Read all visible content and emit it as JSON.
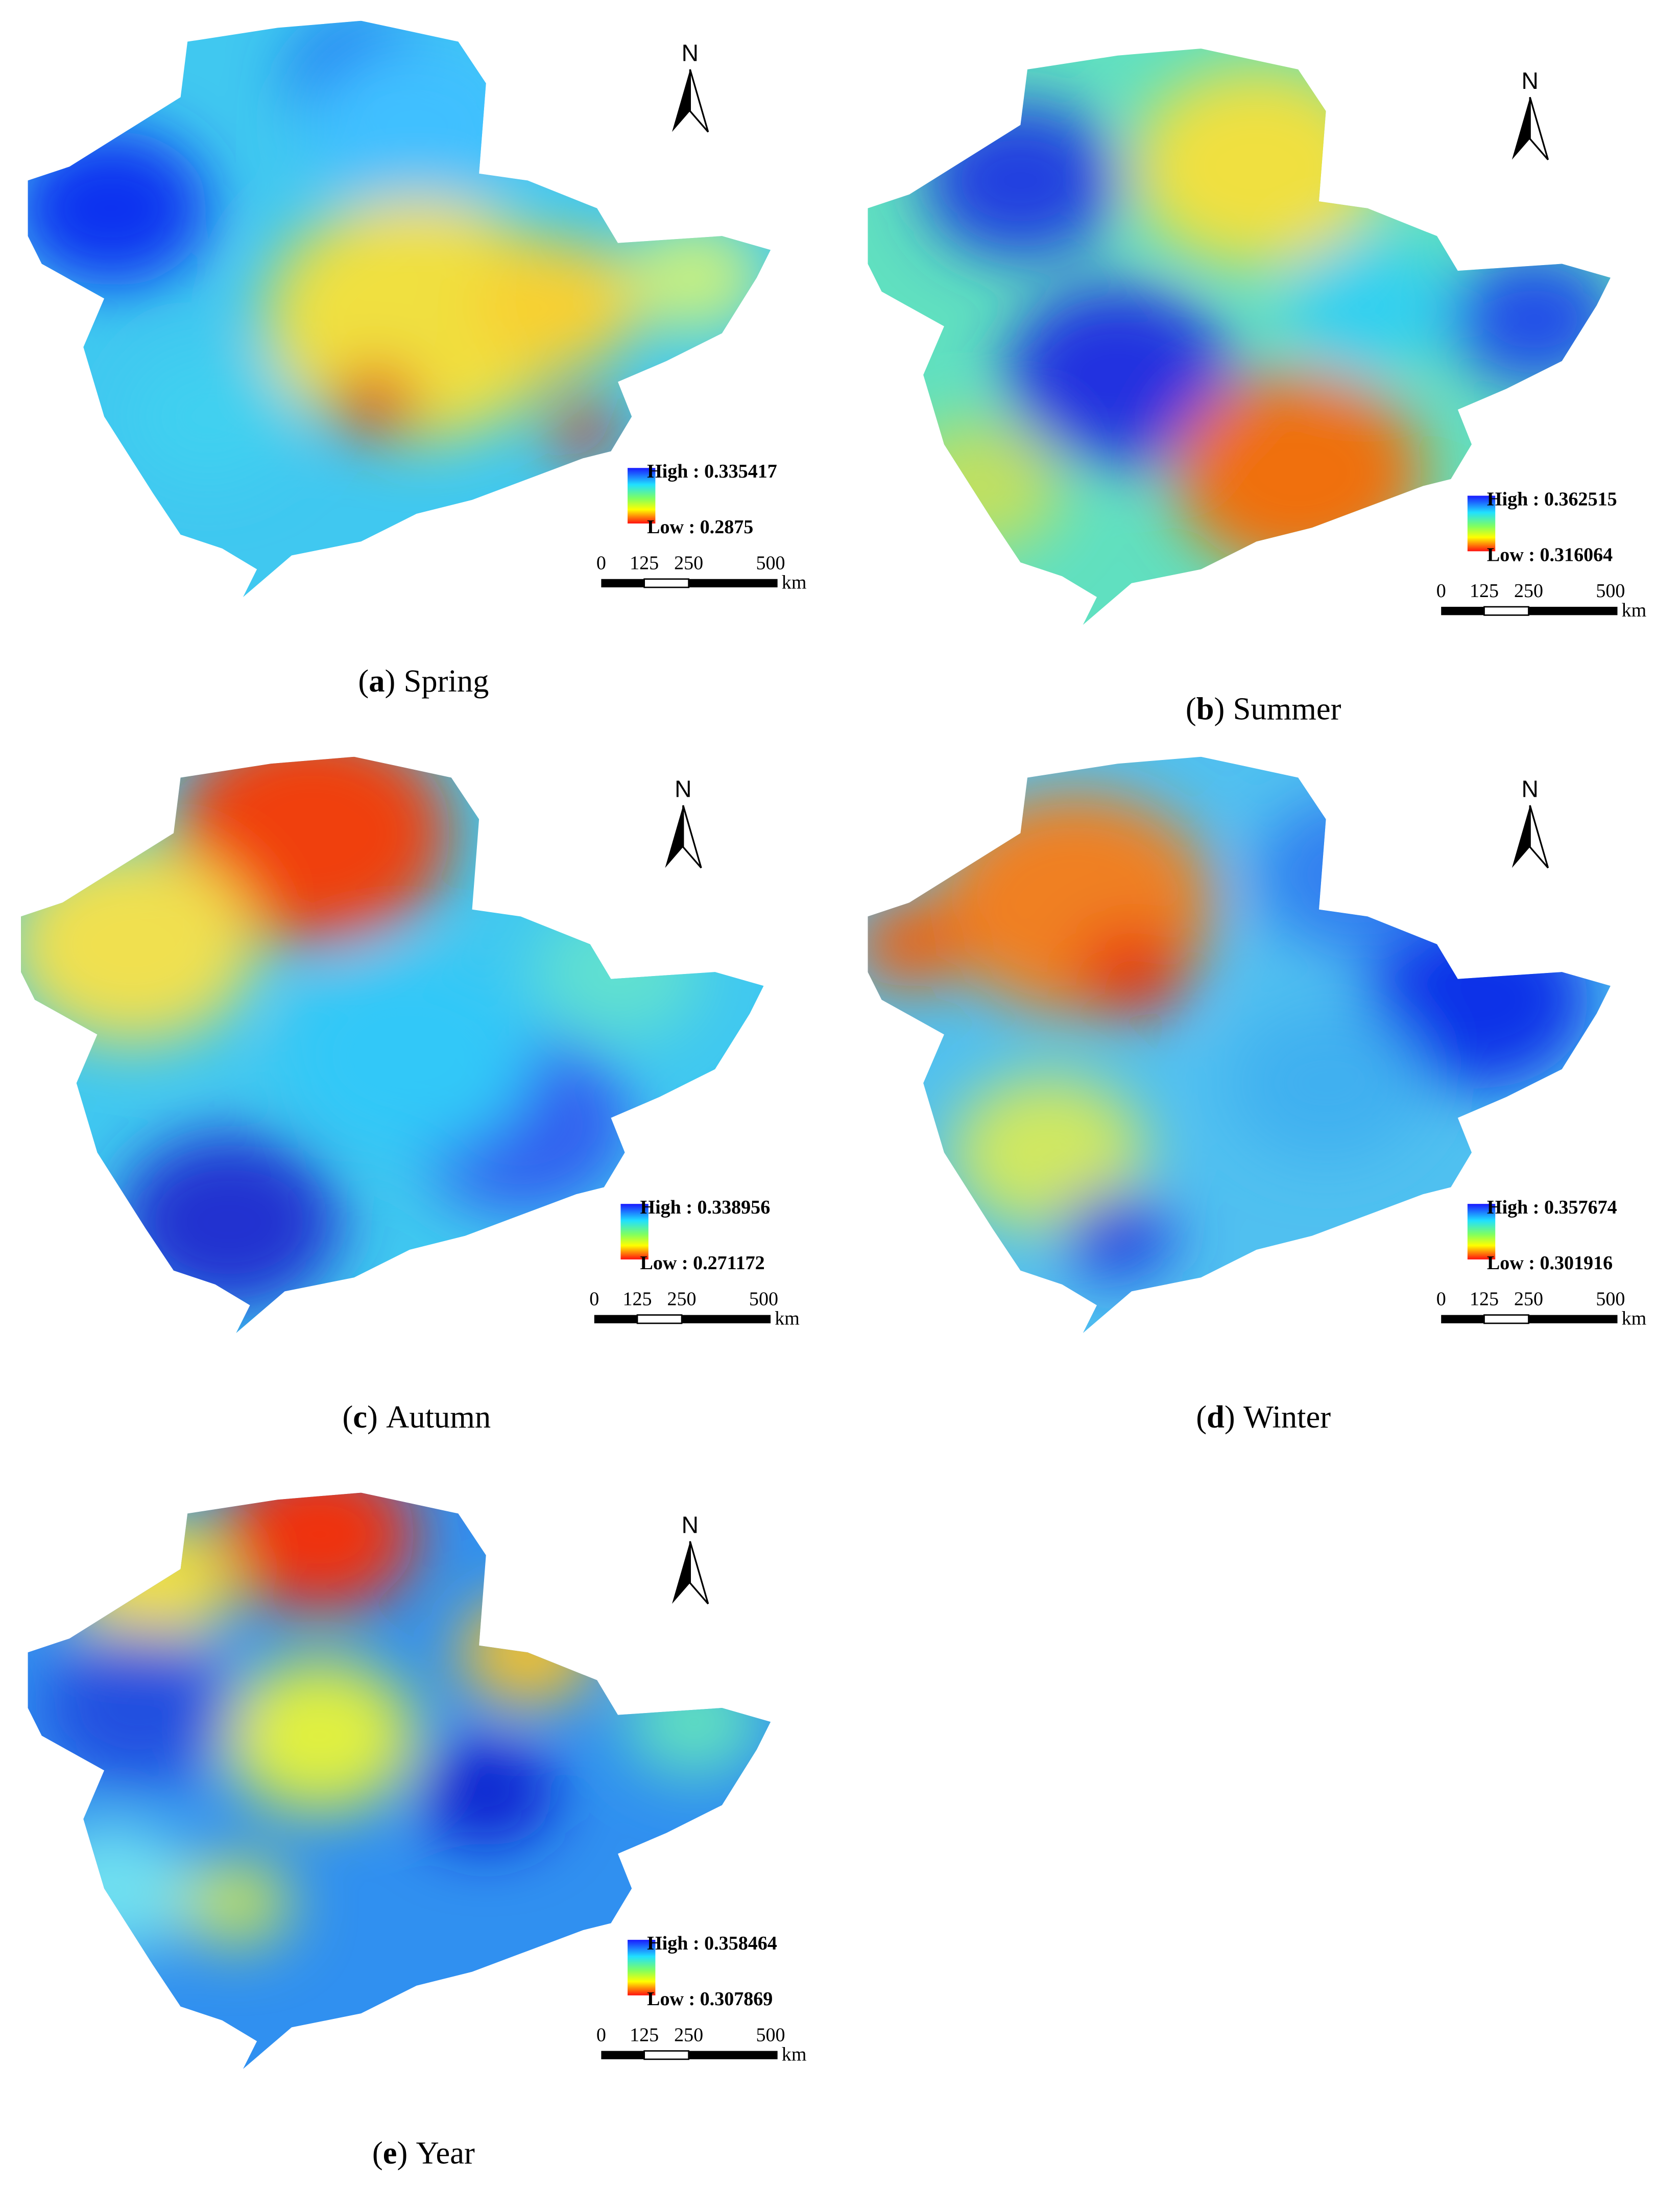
{
  "panels": [
    {
      "tag": {
        "open": "(",
        "letter": "a",
        "close": ")"
      },
      "caption": "Spring",
      "north": "N",
      "legend_high": "High : 0.335417",
      "legend_low": "Low : 0.2875",
      "scale": [
        "0",
        "125",
        "250",
        "500"
      ],
      "scale_unit": "km"
    },
    {
      "tag": {
        "open": "(",
        "letter": "b",
        "close": ")"
      },
      "caption": "Summer",
      "north": "N",
      "legend_high": "High : 0.362515",
      "legend_low": "Low : 0.316064",
      "scale": [
        "0",
        "125",
        "250",
        "500"
      ],
      "scale_unit": "km"
    },
    {
      "tag": {
        "open": "(",
        "letter": "c",
        "close": ")"
      },
      "caption": "Autumn",
      "north": "N",
      "legend_high": "High : 0.338956",
      "legend_low": "Low : 0.271172",
      "scale": [
        "0",
        "125",
        "250",
        "500"
      ],
      "scale_unit": "km"
    },
    {
      "tag": {
        "open": "(",
        "letter": "d",
        "close": ")"
      },
      "caption": "Winter",
      "north": "N",
      "legend_high": "High : 0.357674",
      "legend_low": "Low : 0.301916",
      "scale": [
        "0",
        "125",
        "250",
        "500"
      ],
      "scale_unit": "km"
    },
    {
      "tag": {
        "open": "(",
        "letter": "e",
        "close": ")"
      },
      "caption": "Year",
      "north": "N",
      "legend_high": "High : 0.358464",
      "legend_low": "Low : 0.307869",
      "scale": [
        "0",
        "125",
        "250",
        "500"
      ],
      "scale_unit": "km"
    }
  ]
}
